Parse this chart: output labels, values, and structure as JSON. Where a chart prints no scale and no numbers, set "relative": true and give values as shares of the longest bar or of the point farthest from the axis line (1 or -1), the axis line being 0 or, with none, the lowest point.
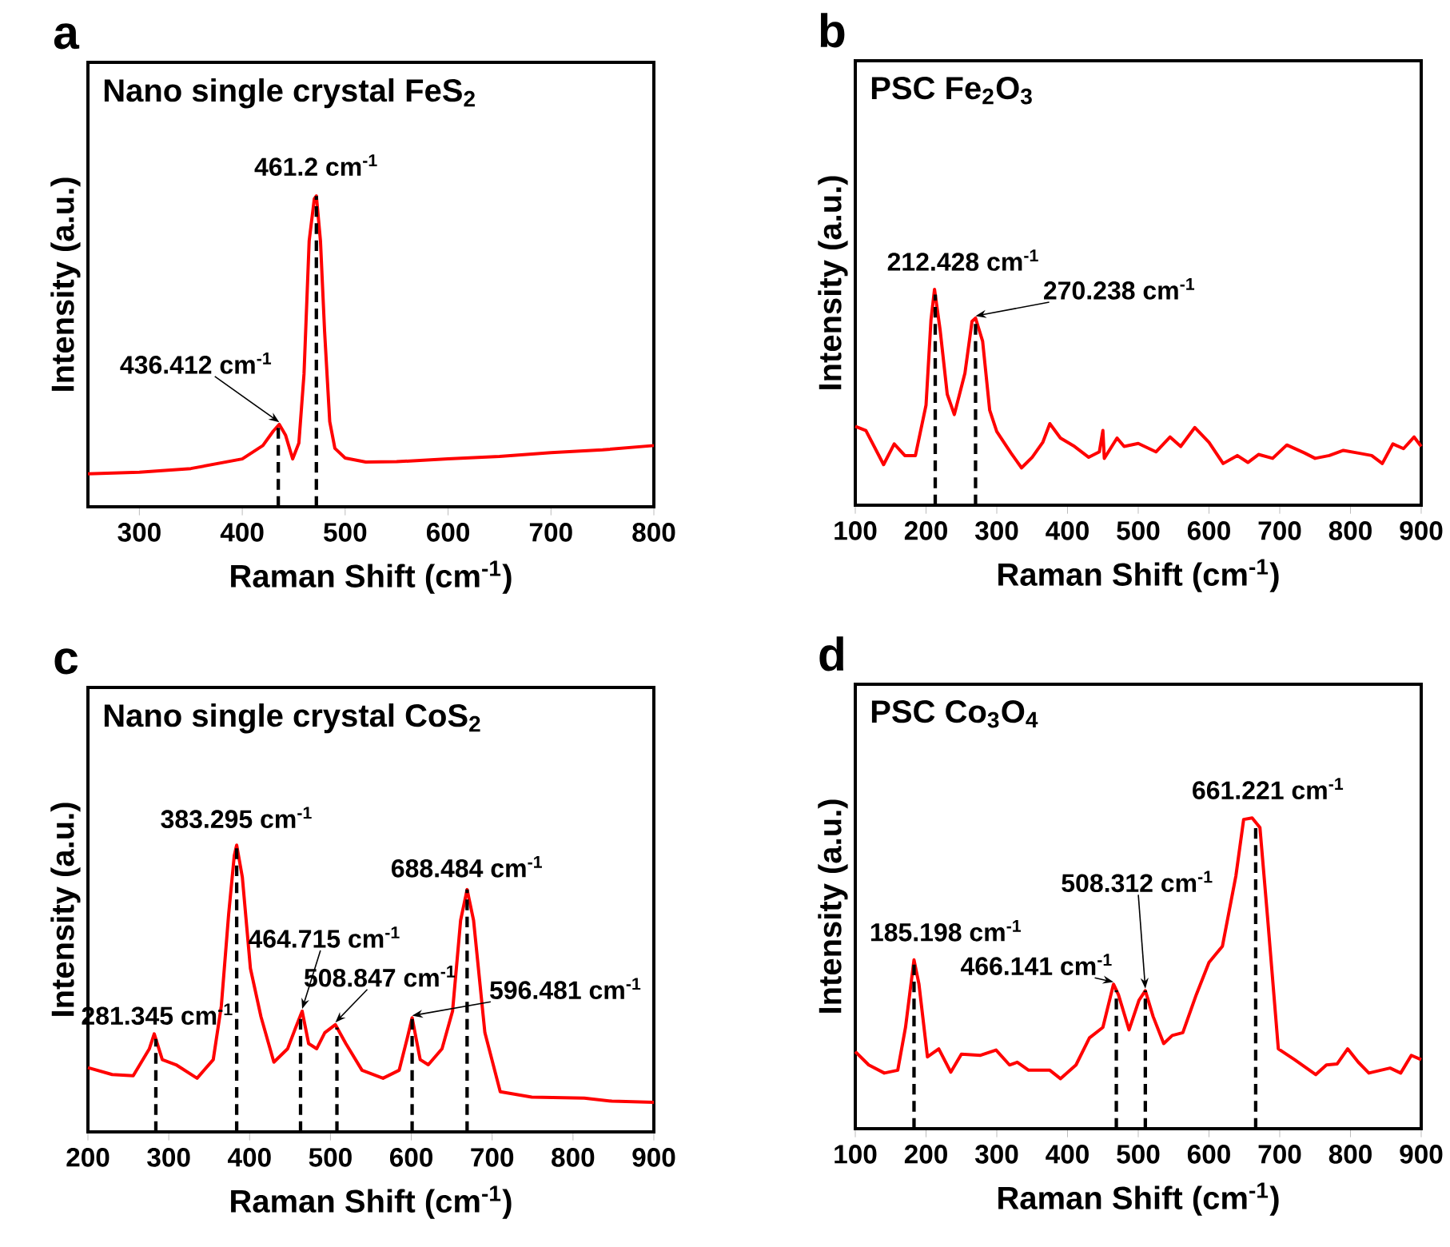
{
  "chart_data": [
    {
      "type": "line",
      "title": "Nano single crystal FeS$_{2}$",
      "xlabel": "Raman Shift (cm$^{-1}$)",
      "ylabel": "Intensity (a.u.)",
      "relative": true,
      "tick_labels": "x",
      "color": "#ff0000",
      "xlim": [
        250,
        800
      ],
      "xticks": [
        300,
        400,
        500,
        600,
        700,
        800
      ],
      "x": [
        250,
        300,
        350,
        400,
        420,
        430,
        436,
        442,
        449,
        455,
        460,
        465,
        470,
        472,
        476,
        480,
        485,
        490,
        500,
        520,
        550,
        600,
        650,
        700,
        750,
        800
      ],
      "values": [
        0.106,
        0.111,
        0.123,
        0.154,
        0.197,
        0.243,
        0.265,
        0.231,
        0.154,
        0.205,
        0.427,
        0.855,
        0.991,
        1.0,
        0.855,
        0.564,
        0.274,
        0.188,
        0.157,
        0.144,
        0.145,
        0.154,
        0.162,
        0.174,
        0.183,
        0.197
      ],
      "ref_lines": [
        {
          "axis": "x",
          "value": 435,
          "color": "#000000",
          "line_style": "dashed"
        },
        {
          "axis": "x",
          "value": 472,
          "color": "#000000",
          "line_style": "dashed"
        }
      ],
      "annotations": [
        "a",
        {
          "text": "436.412 cm$^{-1}$",
          "x": 436,
          "y": 0.265
        },
        {
          "text": "461.2 cm$^{-1}$",
          "x": 472,
          "y": 1.0
        }
      ]
    },
    {
      "type": "line",
      "title": "PSC Fe$_{2}$O$_{3}$",
      "xlabel": "Raman Shift (cm$^{-1}$)",
      "ylabel": "Intensity (a.u.)",
      "relative": true,
      "tick_labels": "x",
      "color": "#ff0000",
      "xlim": [
        100,
        900
      ],
      "xticks": [
        100,
        200,
        300,
        400,
        500,
        600,
        700,
        800,
        900
      ],
      "x": [
        100,
        115,
        140,
        155,
        170,
        185,
        200,
        207,
        212,
        220,
        230,
        240,
        255,
        265,
        270,
        280,
        290,
        300,
        320,
        335,
        350,
        365,
        375,
        390,
        410,
        430,
        445,
        450,
        452,
        470,
        480,
        500,
        525,
        545,
        560,
        580,
        600,
        620,
        640,
        655,
        670,
        690,
        710,
        735,
        750,
        770,
        790,
        810,
        830,
        845,
        860,
        875,
        890,
        900
      ],
      "values": [
        0.365,
        0.346,
        0.188,
        0.284,
        0.23,
        0.23,
        0.464,
        0.859,
        1.0,
        0.81,
        0.514,
        0.42,
        0.612,
        0.852,
        0.867,
        0.76,
        0.44,
        0.341,
        0.242,
        0.173,
        0.222,
        0.291,
        0.378,
        0.311,
        0.272,
        0.222,
        0.247,
        0.346,
        0.217,
        0.311,
        0.272,
        0.286,
        0.247,
        0.316,
        0.272,
        0.36,
        0.291,
        0.193,
        0.23,
        0.198,
        0.235,
        0.217,
        0.279,
        0.242,
        0.217,
        0.23,
        0.254,
        0.242,
        0.23,
        0.193,
        0.284,
        0.262,
        0.316,
        0.272
      ],
      "ref_lines": [
        {
          "axis": "x",
          "value": 213,
          "color": "#000000",
          "line_style": "dashed"
        },
        {
          "axis": "x",
          "value": 270,
          "color": "#000000",
          "line_style": "dashed"
        }
      ],
      "annotations": [
        "b",
        {
          "text": "212.428 cm$^{-1}$",
          "x": 212,
          "y": 1.0
        },
        {
          "text": "270.238 cm$^{-1}$",
          "x": 270,
          "y": 0.867
        }
      ]
    },
    {
      "type": "line",
      "title": "Nano single crystal CoS$_{2}$",
      "xlabel": "Raman Shift (cm$^{-1}$)",
      "ylabel": "Intensity (a.u.)",
      "relative": true,
      "tick_labels": "x",
      "color": "#ff0000",
      "xlim": [
        200,
        900
      ],
      "xticks": [
        200,
        300,
        400,
        500,
        600,
        700,
        800,
        900
      ],
      "x": [
        200,
        230,
        256,
        276,
        282,
        292,
        309,
        335,
        355,
        365,
        374,
        381,
        384,
        391,
        401,
        414,
        430,
        447,
        457,
        465,
        473,
        483,
        493,
        506,
        519,
        539,
        565,
        585,
        595,
        601,
        611,
        621,
        638,
        651,
        661,
        669,
        677,
        691,
        710,
        749,
        814,
        848,
        900
      ],
      "values": [
        0.224,
        0.2,
        0.196,
        0.29,
        0.342,
        0.252,
        0.234,
        0.187,
        0.252,
        0.439,
        0.757,
        0.963,
        1.0,
        0.888,
        0.57,
        0.402,
        0.243,
        0.29,
        0.364,
        0.421,
        0.308,
        0.29,
        0.346,
        0.374,
        0.308,
        0.215,
        0.187,
        0.215,
        0.327,
        0.398,
        0.252,
        0.234,
        0.29,
        0.421,
        0.738,
        0.845,
        0.738,
        0.346,
        0.14,
        0.121,
        0.118,
        0.107,
        0.103
      ],
      "ref_lines": [
        {
          "axis": "x",
          "value": 284,
          "color": "#000000",
          "line_style": "dashed"
        },
        {
          "axis": "x",
          "value": 384,
          "color": "#000000",
          "line_style": "dashed"
        },
        {
          "axis": "x",
          "value": 463,
          "color": "#000000",
          "line_style": "dashed"
        },
        {
          "axis": "x",
          "value": 508,
          "color": "#000000",
          "line_style": "dashed"
        },
        {
          "axis": "x",
          "value": 601,
          "color": "#000000",
          "line_style": "dashed"
        },
        {
          "axis": "x",
          "value": 669,
          "color": "#000000",
          "line_style": "dashed"
        }
      ],
      "annotations": [
        "c",
        {
          "text": "281.345 cm$^{-1}$",
          "x": 282,
          "y": 0.342
        },
        {
          "text": "383.295 cm$^{-1}$",
          "x": 384,
          "y": 1.0
        },
        {
          "text": "464.715 cm$^{-1}$",
          "x": 465,
          "y": 0.421
        },
        {
          "text": "508.847 cm$^{-1}$",
          "x": 506,
          "y": 0.374
        },
        {
          "text": "596.481 cm$^{-1}$",
          "x": 601,
          "y": 0.398
        },
        {
          "text": "688.484 cm$^{-1}$",
          "x": 669,
          "y": 0.845
        }
      ]
    },
    {
      "type": "line",
      "title": "PSC Co$_{3}$O$_{4}$",
      "xlabel": "Raman Shift (cm$^{-1}$)",
      "ylabel": "Intensity (a.u.)",
      "relative": true,
      "tick_labels": "x",
      "color": "#ff0000",
      "xlim": [
        100,
        900
      ],
      "xticks": [
        100,
        200,
        300,
        400,
        500,
        600,
        700,
        800,
        900
      ],
      "x": [
        100,
        119,
        141,
        160,
        171,
        183,
        190,
        202,
        218,
        235,
        250,
        277,
        299,
        318,
        329,
        345,
        375,
        390,
        412,
        431,
        450,
        465,
        472,
        487,
        501,
        510,
        521,
        536,
        548,
        563,
        582,
        600,
        619,
        638,
        649,
        661,
        672,
        683,
        698,
        721,
        751,
        766,
        781,
        796,
        811,
        826,
        856,
        871,
        886,
        900
      ],
      "values": [
        0.248,
        0.205,
        0.179,
        0.188,
        0.326,
        0.543,
        0.465,
        0.231,
        0.257,
        0.182,
        0.24,
        0.236,
        0.253,
        0.205,
        0.214,
        0.188,
        0.188,
        0.161,
        0.205,
        0.292,
        0.326,
        0.465,
        0.431,
        0.318,
        0.413,
        0.444,
        0.361,
        0.274,
        0.3,
        0.309,
        0.431,
        0.535,
        0.587,
        0.813,
        0.995,
        1.0,
        0.969,
        0.674,
        0.257,
        0.222,
        0.174,
        0.205,
        0.208,
        0.257,
        0.214,
        0.179,
        0.195,
        0.179,
        0.236,
        0.222
      ],
      "ref_lines": [
        {
          "axis": "x",
          "value": 183,
          "color": "#000000",
          "line_style": "dashed"
        },
        {
          "axis": "x",
          "value": 469,
          "color": "#000000",
          "line_style": "dashed"
        },
        {
          "axis": "x",
          "value": 510,
          "color": "#000000",
          "line_style": "dashed"
        },
        {
          "axis": "x",
          "value": 666,
          "color": "#000000",
          "line_style": "dashed"
        }
      ],
      "annotations": [
        "d",
        {
          "text": "185.198 cm$^{-1}$",
          "x": 183,
          "y": 0.543
        },
        {
          "text": "466.141 cm$^{-1}$",
          "x": 465,
          "y": 0.465
        },
        {
          "text": "508.312 cm$^{-1}$",
          "x": 510,
          "y": 0.444
        },
        {
          "text": "661.221 cm$^{-1}$",
          "x": 661,
          "y": 1.0
        }
      ]
    }
  ]
}
